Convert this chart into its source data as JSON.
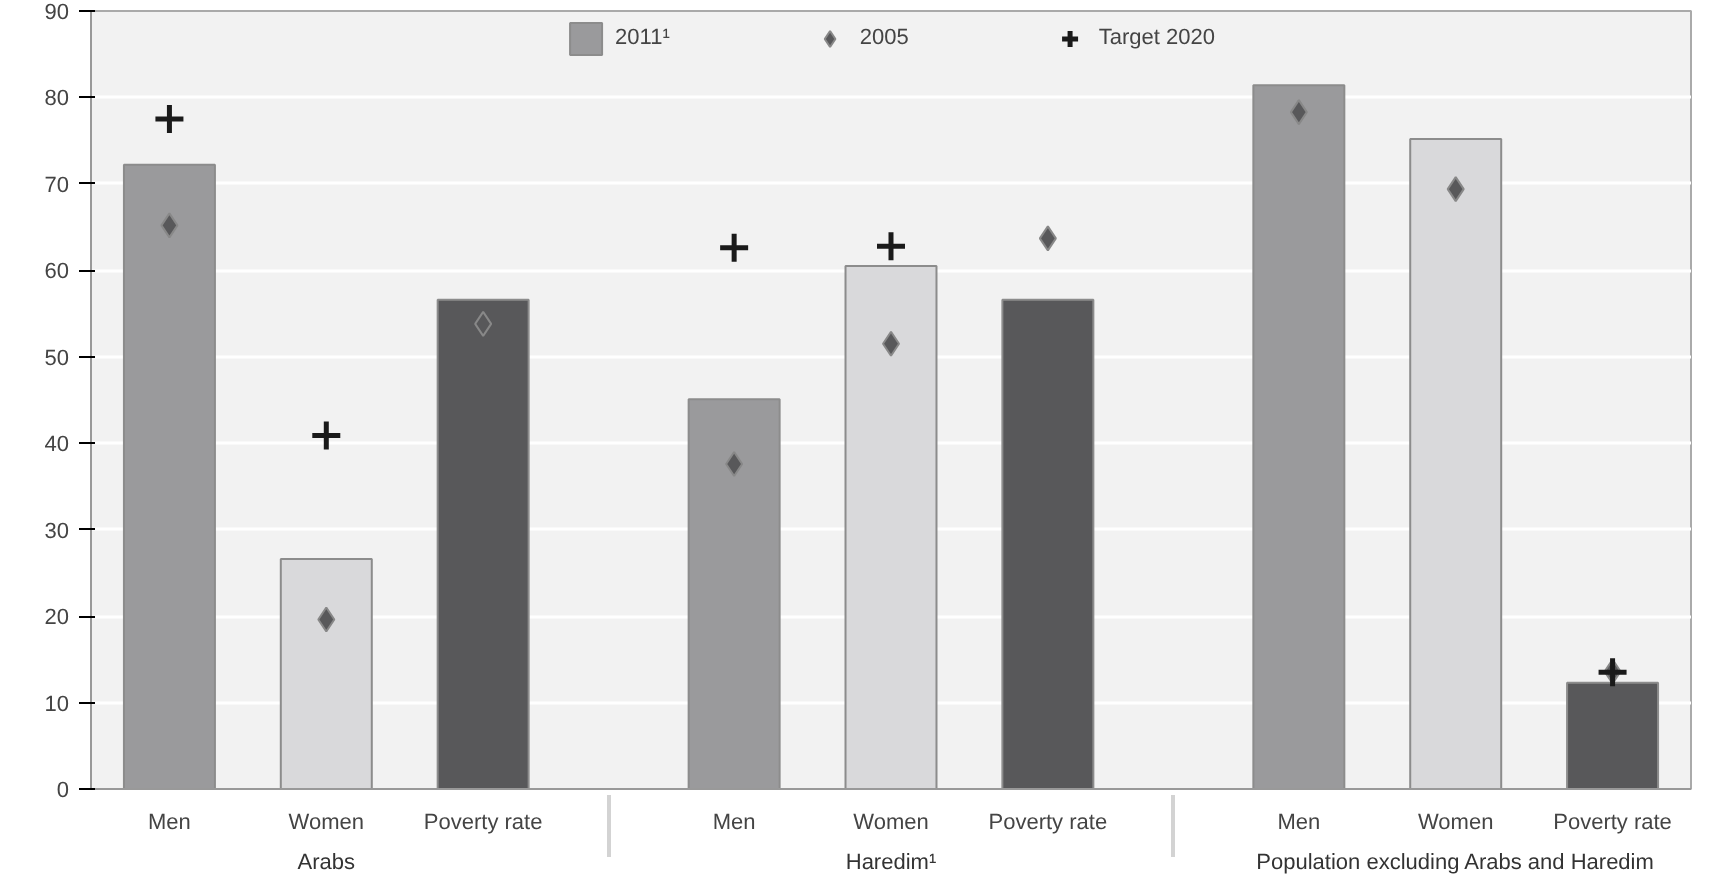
{
  "chart_data": {
    "type": "bar",
    "categories": [
      "Men",
      "Women",
      "Poverty rate",
      "Men",
      "Women",
      "Poverty rate",
      "Men",
      "Women",
      "Poverty rate"
    ],
    "series": [
      {
        "name": "2011¹",
        "color": "#8c8c8c",
        "colors": [
          "#9a9a9c",
          "#d9d9db",
          "#58585a",
          "#9a9a9c",
          "#d9d9db",
          "#58585a",
          "#9a9a9c",
          "#d9d9db",
          "#58585a"
        ],
        "values": [
          72.2,
          26.6,
          56.6,
          45.1,
          60.5,
          56.6,
          81.4,
          75.2,
          12.3
        ]
      },
      {
        "name": "2005",
        "type": "scatter",
        "marker": "diamond",
        "color": "#58585a",
        "values": [
          65.2,
          19.6,
          53.8,
          37.6,
          51.5,
          63.7,
          78.3,
          69.4,
          13.6
        ]
      },
      {
        "name": "Target 2020",
        "type": "scatter",
        "marker": "cross",
        "color": "#1a1a1a",
        "values": [
          77.5,
          40.9,
          null,
          62.6,
          62.8,
          null,
          null,
          null,
          13.5
        ]
      }
    ],
    "ylim": [
      0,
      90
    ],
    "yticks": [
      0,
      10,
      20,
      30,
      40,
      50,
      60,
      70,
      80,
      90
    ],
    "grid": "y",
    "legend": "top",
    "annotations": [
      "Arabs",
      "Haredim¹",
      "Population excluding Arabs and Haredim"
    ]
  }
}
